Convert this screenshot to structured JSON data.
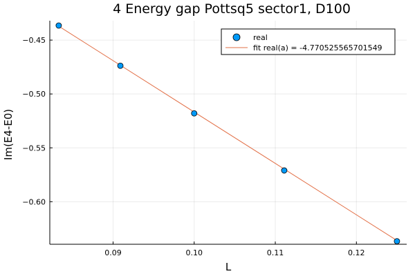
{
  "chart_data": {
    "type": "scatter",
    "title": "4 Energy gap Pottsq5 sector1, D100",
    "xlabel": "L",
    "ylabel": "Im(E4-E0)",
    "xlim": [
      0.0822,
      0.1262
    ],
    "ylim": [
      -0.6395,
      -0.432
    ],
    "x_ticks": [
      0.09,
      0.1,
      0.11,
      0.12
    ],
    "x_tick_labels": [
      "0.09",
      "0.10",
      "0.11",
      "0.12"
    ],
    "y_ticks": [
      -0.45,
      -0.5,
      -0.55,
      -0.6
    ],
    "y_tick_labels": [
      "−0.45",
      "−0.50",
      "−0.55",
      "−0.60"
    ],
    "grid": true,
    "legend_position": "top-right",
    "series": [
      {
        "name": "real",
        "kind": "scatter",
        "color": "#009af9",
        "x": [
          0.0833,
          0.0909,
          0.1,
          0.1111,
          0.125
        ],
        "y": [
          -0.4365,
          -0.4738,
          -0.518,
          -0.571,
          -0.6367
        ]
      },
      {
        "name": "fit real(a) = -4.770525565701549",
        "kind": "line",
        "color": "#e26f46",
        "x": [
          0.0833,
          0.125
        ],
        "y": [
          -0.4371,
          -0.636
        ]
      }
    ]
  }
}
